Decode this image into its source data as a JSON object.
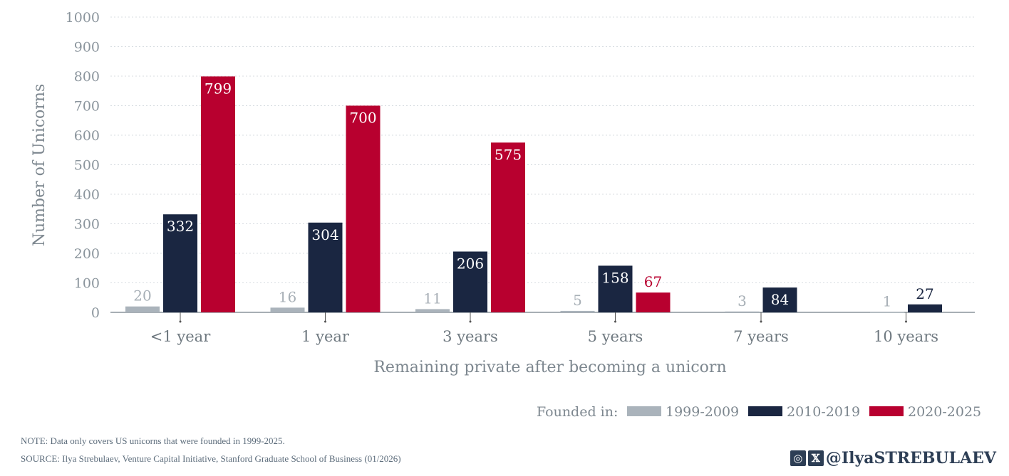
{
  "chart_data": {
    "type": "bar",
    "title": "",
    "xlabel": "Remaining private after becoming a unicorn",
    "ylabel": "Number of Unicorns",
    "ylim": [
      0,
      1000
    ],
    "yticks": [
      0,
      100,
      200,
      300,
      400,
      500,
      600,
      700,
      800,
      900,
      1000
    ],
    "grid": true,
    "categories": [
      "<1 year",
      "1 year",
      "3 years",
      "5 years",
      "7 years",
      "10 years"
    ],
    "series": [
      {
        "name": "1999-2009",
        "color": "#aab3bb",
        "values": [
          20,
          16,
          11,
          5,
          3,
          1
        ]
      },
      {
        "name": "2010-2019",
        "color": "#1a2641",
        "values": [
          332,
          304,
          206,
          158,
          84,
          27
        ]
      },
      {
        "name": "2020-2025",
        "color": "#b8002f",
        "values": [
          799,
          700,
          575,
          67,
          null,
          null
        ]
      }
    ],
    "legend": {
      "title": "Founded in:",
      "placement": "bottom-right"
    }
  },
  "footer": {
    "note": "NOTE: Data only covers US unicorns that were founded in 1999-2025.",
    "source": "SOURCE: Ilya Strebulaev, Venture Capital Initiative, Stanford Graduate School of Business (01/2026)",
    "handle": "@IlyaSTREBULAEV"
  }
}
